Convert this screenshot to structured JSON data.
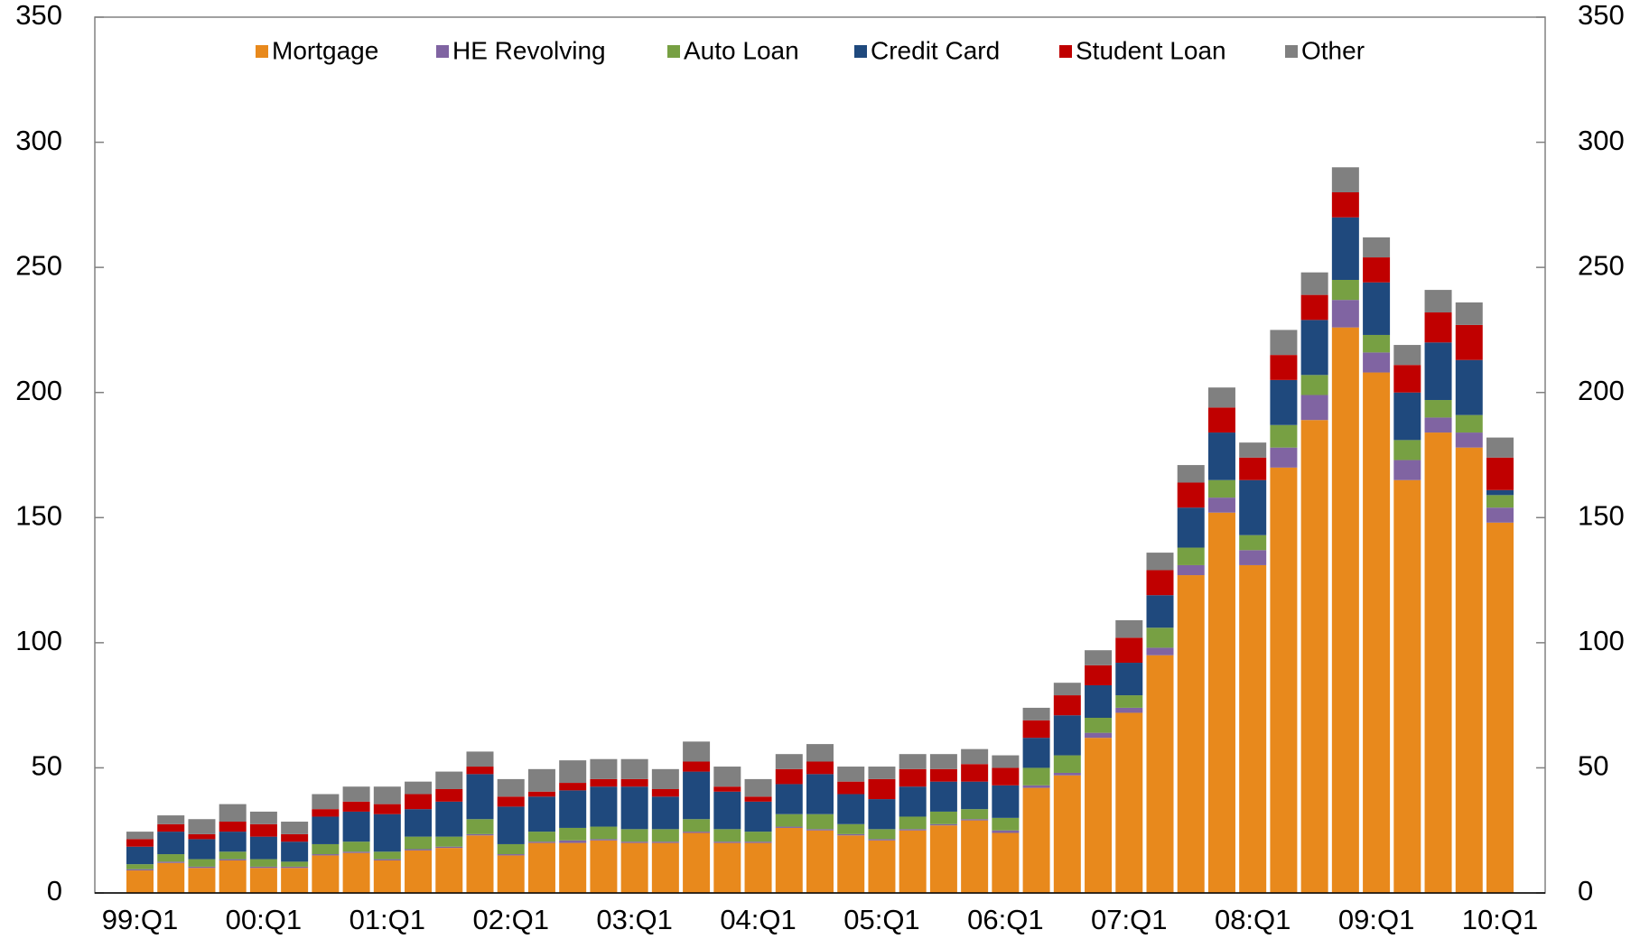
{
  "chart_data": {
    "type": "stacked_bar",
    "categories": [
      "99:Q1",
      null,
      null,
      null,
      "00:Q1",
      null,
      null,
      null,
      "01:Q1",
      null,
      null,
      null,
      "02:Q1",
      null,
      null,
      null,
      "03:Q1",
      null,
      null,
      null,
      "04:Q1",
      null,
      null,
      null,
      "05:Q1",
      null,
      null,
      null,
      "06:Q1",
      null,
      null,
      null,
      "07:Q1",
      null,
      null,
      null,
      "08:Q1",
      null,
      null,
      null,
      "09:Q1",
      null,
      null,
      null,
      "10:Q1"
    ],
    "series": [
      {
        "name": "Mortgage",
        "color": "#e8891c",
        "values": [
          9,
          12,
          10,
          13,
          10,
          10,
          15,
          16,
          13,
          17,
          18,
          23,
          15,
          20,
          20,
          21,
          20,
          20,
          24,
          20,
          20,
          26,
          25,
          23,
          21,
          25,
          27,
          29,
          24,
          42,
          47,
          62,
          72,
          95,
          127,
          152,
          131,
          170,
          189,
          226,
          208,
          165,
          184,
          178,
          148
        ]
      },
      {
        "name": "HE Revolving",
        "color": "#8064a2",
        "values": [
          0.5,
          0.5,
          0.5,
          0.5,
          0.5,
          0.5,
          0.5,
          0.5,
          0.5,
          0.5,
          0.5,
          0.5,
          0.5,
          0.5,
          1,
          0.5,
          0.5,
          0.5,
          0.5,
          0.5,
          0.5,
          0.5,
          0.5,
          0.5,
          0.5,
          0.5,
          0.5,
          0.5,
          1,
          1,
          1,
          2,
          2,
          3,
          4,
          6,
          6,
          8,
          10,
          11,
          8,
          8,
          6,
          6,
          6
        ]
      },
      {
        "name": "Auto Loan",
        "color": "#77a043",
        "values": [
          2,
          3,
          3,
          3,
          3,
          2,
          4,
          4,
          3,
          5,
          4,
          6,
          4,
          4,
          5,
          5,
          5,
          5,
          5,
          5,
          4,
          5,
          6,
          4,
          4,
          5,
          5,
          4,
          5,
          7,
          7,
          6,
          5,
          8,
          7,
          7,
          6,
          9,
          8,
          8,
          7,
          8,
          7,
          7,
          5
        ]
      },
      {
        "name": "Credit Card",
        "color": "#1f497d",
        "values": [
          7,
          9,
          8,
          8,
          9,
          8,
          11,
          12,
          15,
          11,
          14,
          18,
          15,
          14,
          15,
          16,
          17,
          13,
          19,
          15,
          12,
          12,
          16,
          12,
          12,
          12,
          12,
          11,
          13,
          12,
          16,
          13,
          13,
          13,
          16,
          19,
          22,
          18,
          22,
          25,
          21,
          19,
          23,
          22,
          2
        ]
      },
      {
        "name": "Student Loan",
        "color": "#c00000",
        "values": [
          3,
          3,
          2,
          4,
          5,
          3,
          3,
          4,
          4,
          6,
          5,
          3,
          4,
          2,
          3,
          3,
          3,
          3,
          4,
          2,
          2,
          6,
          5,
          5,
          8,
          7,
          5,
          7,
          7,
          7,
          8,
          8,
          10,
          10,
          10,
          10,
          9,
          10,
          10,
          10,
          10,
          11,
          12,
          14,
          13
        ]
      },
      {
        "name": "Other",
        "color": "#808080",
        "values": [
          3,
          3.5,
          6,
          7,
          5,
          5,
          6,
          6,
          7,
          5,
          7,
          6,
          7,
          9,
          9,
          8,
          8,
          8,
          8,
          8,
          7,
          6,
          7,
          6,
          5,
          6,
          6,
          6,
          5,
          5,
          5,
          6,
          7,
          7,
          7,
          8,
          6,
          10,
          9,
          10,
          8,
          8,
          9,
          9,
          8
        ]
      }
    ],
    "ylim": [
      0,
      350
    ],
    "yticks": [
      0,
      50,
      100,
      150,
      200,
      250,
      300,
      350
    ],
    "y2lim": [
      0,
      350
    ],
    "y2ticks": [
      0,
      50,
      100,
      150,
      200,
      250,
      300,
      350
    ],
    "legend": "top"
  }
}
